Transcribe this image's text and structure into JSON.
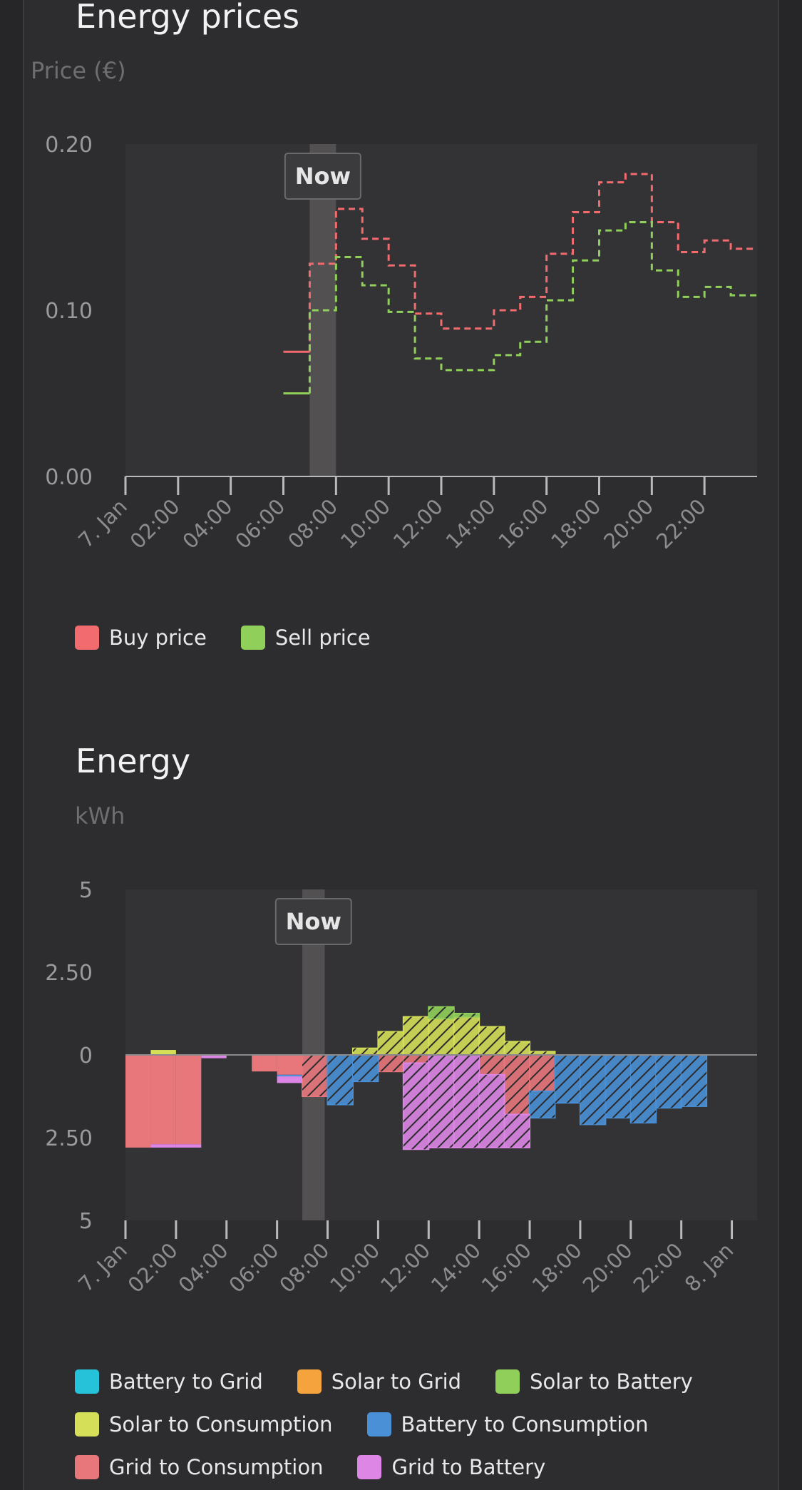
{
  "prices_section": {
    "title": "Energy prices",
    "unit": "Price (€)"
  },
  "energy_section": {
    "title": "Energy",
    "unit": "kWh"
  },
  "now_label": "Now",
  "colors": {
    "buy": "#f26b6f",
    "sell": "#8fcf5a",
    "battery_to_grid": "#25c2da",
    "solar_to_grid": "#f5a33c",
    "solar_to_battery": "#8fcf5a",
    "solar_to_consumption": "#d5df58",
    "battery_to_consumption": "#4a90d6",
    "grid_to_consumption": "#e8777c",
    "grid_to_battery": "#dd86e6",
    "plot_bg": "#333335",
    "now_band": "#525050"
  },
  "chart_data": [
    {
      "type": "line",
      "step": true,
      "title": "Energy prices",
      "ylabel": "Price (€)",
      "ylim": [
        0,
        0.2
      ],
      "yticks": [
        "0.20",
        "0.10",
        "0.00"
      ],
      "xlim": [
        0,
        24
      ],
      "xticks": [
        "7. Jan",
        "02:00",
        "04:00",
        "06:00",
        "08:00",
        "10:00",
        "12:00",
        "14:00",
        "16:00",
        "18:00",
        "20:00",
        "22:00"
      ],
      "now_hour": 7,
      "legend": [
        "Buy price",
        "Sell price"
      ],
      "series": [
        {
          "name": "Buy price",
          "x": [
            6,
            7,
            8,
            9,
            10,
            11,
            12,
            13,
            14,
            15,
            16,
            17,
            18,
            19,
            20,
            21,
            22,
            23
          ],
          "y": [
            0.075,
            0.128,
            0.161,
            0.143,
            0.127,
            0.098,
            0.089,
            0.089,
            0.1,
            0.108,
            0.134,
            0.159,
            0.177,
            0.182,
            0.153,
            0.135,
            0.142,
            0.137
          ]
        },
        {
          "name": "Sell price",
          "x": [
            6,
            7,
            8,
            9,
            10,
            11,
            12,
            13,
            14,
            15,
            16,
            17,
            18,
            19,
            20,
            21,
            22,
            23
          ],
          "y": [
            0.05,
            0.1,
            0.132,
            0.115,
            0.099,
            0.071,
            0.064,
            0.064,
            0.073,
            0.081,
            0.106,
            0.13,
            0.148,
            0.153,
            0.124,
            0.108,
            0.114,
            0.109
          ]
        }
      ]
    },
    {
      "type": "bar",
      "stacked": true,
      "title": "Energy",
      "ylabel": "kWh",
      "ylim": [
        -5,
        5
      ],
      "yticks": [
        "5",
        "2.50",
        "0",
        "2.50",
        "5"
      ],
      "xlim": [
        0,
        25
      ],
      "xticks": [
        "7. Jan",
        "02:00",
        "04:00",
        "06:00",
        "08:00",
        "10:00",
        "12:00",
        "14:00",
        "16:00",
        "18:00",
        "20:00",
        "22:00",
        "8. Jan"
      ],
      "now_hour": 7,
      "legend": [
        "Battery to Grid",
        "Solar to Grid",
        "Solar to Battery",
        "Solar to Consumption",
        "Battery to Consumption",
        "Grid to Consumption",
        "Grid to Battery"
      ],
      "hours": [
        0,
        1,
        2,
        3,
        4,
        5,
        6,
        7,
        8,
        9,
        10,
        11,
        12,
        13,
        14,
        15,
        16,
        17,
        18,
        19,
        20,
        21,
        22,
        23
      ],
      "series": [
        {
          "name": "Solar to Consumption",
          "sign": 1,
          "values": [
            0,
            0.15,
            0,
            0,
            0,
            0,
            0,
            0,
            0,
            0.2,
            0.7,
            1.15,
            1.1,
            1.15,
            0.85,
            0.4,
            0.1,
            0,
            0,
            0,
            0,
            0,
            0,
            0
          ]
        },
        {
          "name": "Solar to Battery",
          "sign": 1,
          "values": [
            0,
            0,
            0,
            0,
            0,
            0,
            0,
            0,
            0,
            0,
            0,
            0,
            0.35,
            0.1,
            0,
            0,
            0,
            0,
            0,
            0,
            0,
            0,
            0,
            0
          ]
        },
        {
          "name": "Grid to Consumption",
          "sign": -1,
          "values": [
            2.8,
            2.7,
            2.7,
            0,
            0,
            0.5,
            0.6,
            1.25,
            0,
            0,
            0.5,
            0.25,
            0,
            0,
            0.6,
            1.8,
            1.1,
            0,
            0,
            0,
            0,
            0,
            0,
            0
          ]
        },
        {
          "name": "Battery to Consumption",
          "sign": -1,
          "values": [
            0,
            0,
            0,
            0,
            0,
            0,
            0.05,
            0,
            1.5,
            0.8,
            0,
            0,
            0,
            0,
            0,
            0,
            0.8,
            1.45,
            2.1,
            1.9,
            2.05,
            1.6,
            1.55,
            0
          ]
        },
        {
          "name": "Grid to Battery",
          "sign": -1,
          "values": [
            0,
            0.1,
            0.1,
            0.1,
            0,
            0,
            0.2,
            0,
            0,
            0,
            0,
            2.6,
            2.8,
            2.8,
            2.2,
            1.0,
            0,
            0,
            0,
            0,
            0,
            0,
            0,
            0
          ]
        }
      ]
    }
  ]
}
